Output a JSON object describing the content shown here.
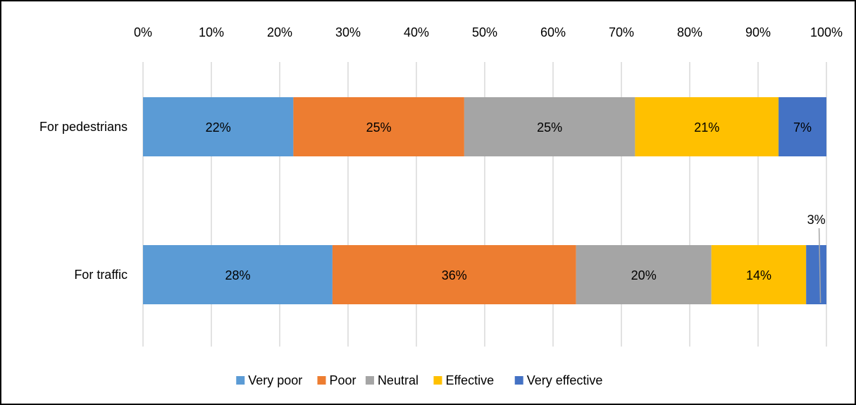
{
  "chart_data": {
    "type": "bar",
    "orientation": "horizontal",
    "stacked": true,
    "percent_stacked": true,
    "categories": [
      "For pedestrians",
      "For traffic"
    ],
    "series": [
      {
        "name": "Very poor",
        "values": [
          22,
          28
        ],
        "labels": [
          "22%",
          "28%"
        ],
        "color": "#5B9BD5"
      },
      {
        "name": "Poor",
        "values": [
          25,
          36
        ],
        "labels": [
          "25%",
          "36%"
        ],
        "color": "#ED7D31"
      },
      {
        "name": "Neutral",
        "values": [
          25,
          20
        ],
        "labels": [
          "25%",
          "20%"
        ],
        "color": "#A5A5A5"
      },
      {
        "name": "Effective",
        "values": [
          21,
          14
        ],
        "labels": [
          "21%",
          "14%"
        ],
        "color": "#FFC000"
      },
      {
        "name": "Very effective",
        "values": [
          7,
          3
        ],
        "labels": [
          "7%",
          "3%"
        ],
        "color": "#4472C4"
      }
    ],
    "xlim": [
      0,
      100
    ],
    "x_ticks": [
      "0%",
      "10%",
      "20%",
      "30%",
      "40%",
      "50%",
      "60%",
      "70%",
      "80%",
      "90%",
      "100%"
    ],
    "x_axis_position": "top",
    "grid": true,
    "legend_position": "bottom"
  }
}
